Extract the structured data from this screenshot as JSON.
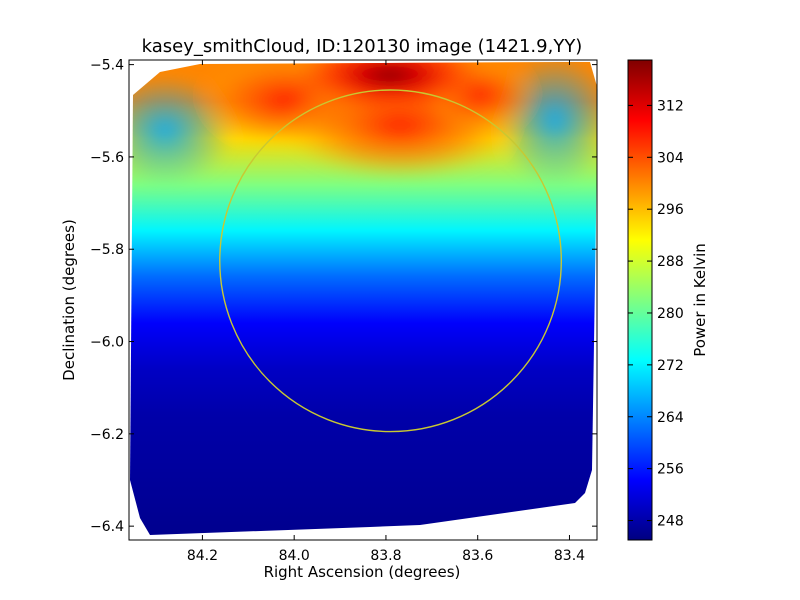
{
  "chart_data": {
    "type": "heatmap",
    "title": "kasey_smithCloud, ID:120130 image (1421.9,YY)",
    "xlabel": "Right Ascension (degrees)",
    "ylabel": "Declination (degrees)",
    "colorbar_label": "Power in Kelvin",
    "xlim": [
      84.36,
      83.34
    ],
    "ylim": [
      -6.43,
      -5.39
    ],
    "x_ticks": [
      84.2,
      84.0,
      83.8,
      83.6,
      83.4
    ],
    "x_tick_labels": [
      "84.2",
      "84.0",
      "83.8",
      "83.6",
      "83.4"
    ],
    "y_ticks": [
      -5.4,
      -5.6,
      -5.8,
      -6.0,
      -6.2,
      -6.4
    ],
    "y_tick_labels": [
      "−5.4",
      "−5.6",
      "−5.8",
      "−6.0",
      "−6.2",
      "−6.4"
    ],
    "colorbar_range": [
      245,
      319
    ],
    "colorbar_ticks": [
      248,
      256,
      264,
      272,
      280,
      288,
      296,
      304,
      312
    ],
    "colorbar_tick_labels": [
      "248",
      "256",
      "264",
      "272",
      "280",
      "288",
      "296",
      "304",
      "312"
    ],
    "colormap": "jet",
    "contour_circle": {
      "center_ra": 83.79,
      "center_dec": -5.825,
      "radius_deg": 0.37,
      "color": "#c8c832"
    },
    "field_profile": [
      {
        "dec": -5.39,
        "value": 300
      },
      {
        "dec": -5.48,
        "value": 300
      },
      {
        "dec": -5.56,
        "value": 294
      },
      {
        "dec": -5.66,
        "value": 282
      },
      {
        "dec": -5.76,
        "value": 272
      },
      {
        "dec": -5.86,
        "value": 262
      },
      {
        "dec": -5.96,
        "value": 254
      },
      {
        "dec": -6.06,
        "value": 250
      },
      {
        "dec": -6.16,
        "value": 248
      },
      {
        "dec": -6.3,
        "value": 247
      },
      {
        "dec": -6.43,
        "value": 246
      }
    ],
    "peak_value": 318,
    "peak_location": {
      "ra": 83.82,
      "dec": -5.43
    }
  }
}
